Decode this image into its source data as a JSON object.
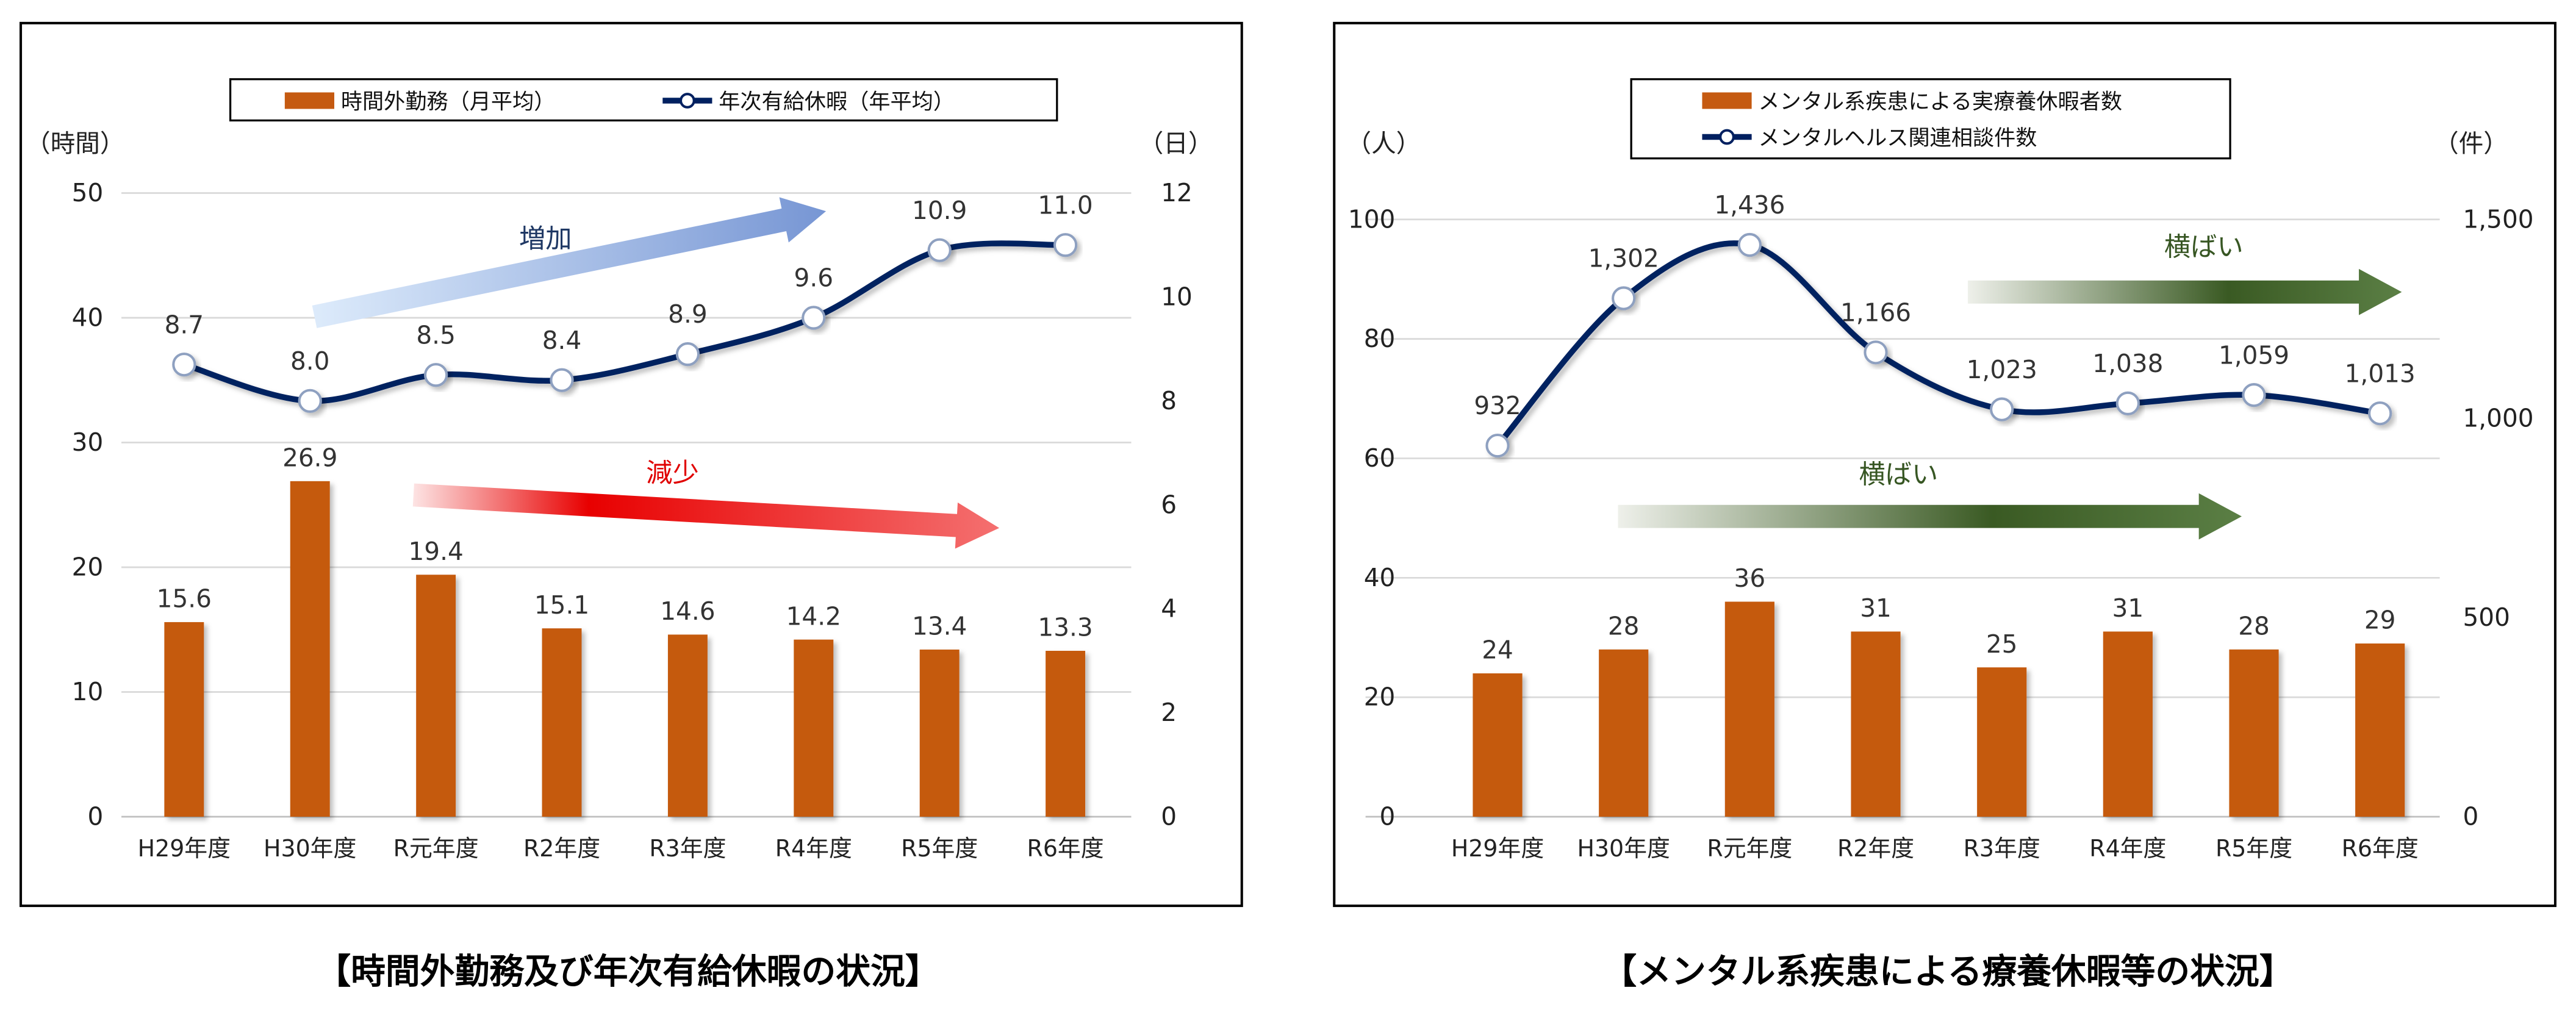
{
  "chart_data": [
    {
      "type": "bar+line",
      "caption": "【時間外勤務及び年次有給休暇の状況】",
      "categories": [
        "H29年度",
        "H30年度",
        "R元年度",
        "R2年度",
        "R3年度",
        "R4年度",
        "R5年度",
        "R6年度"
      ],
      "left_axis": {
        "unit_label": "（時間）",
        "ylim": [
          0,
          50
        ],
        "ticks": [
          "0",
          "10",
          "20",
          "30",
          "40",
          "50"
        ]
      },
      "right_axis": {
        "unit_label": "（日）",
        "ylim": [
          0,
          12
        ],
        "ticks": [
          "0",
          "2",
          "4",
          "6",
          "8",
          "10",
          "12"
        ]
      },
      "series": [
        {
          "name": "時間外勤務（月平均）",
          "type": "bar",
          "axis": "left",
          "color": "#C55A11",
          "values": [
            15.6,
            26.9,
            19.4,
            15.1,
            14.6,
            14.2,
            13.4,
            13.3
          ],
          "labels": [
            "15.6",
            "26.9",
            "19.4",
            "15.1",
            "14.6",
            "14.2",
            "13.4",
            "13.3"
          ]
        },
        {
          "name": "年次有給休暇（年平均）",
          "type": "line",
          "axis": "right",
          "color": "#002060",
          "values": [
            8.7,
            8.0,
            8.5,
            8.4,
            8.9,
            9.6,
            10.9,
            11.0
          ],
          "labels": [
            "8.7",
            "8.0",
            "8.5",
            "8.4",
            "8.9",
            "9.6",
            "10.9",
            "11.0"
          ]
        }
      ],
      "annotations": [
        {
          "text": "増加",
          "color": "#1F3864",
          "arrow": "up"
        },
        {
          "text": "減少",
          "color": "#E00000",
          "arrow": "down"
        }
      ],
      "grid": true,
      "legend": "top"
    },
    {
      "type": "bar+line",
      "caption": "【メンタル系疾患による療養休暇等の状況】",
      "categories": [
        "H29年度",
        "H30年度",
        "R元年度",
        "R2年度",
        "R3年度",
        "R4年度",
        "R5年度",
        "R6年度"
      ],
      "left_axis": {
        "unit_label": "（人）",
        "ylim": [
          0,
          100
        ],
        "ticks": [
          "0",
          "20",
          "40",
          "60",
          "80",
          "100"
        ]
      },
      "right_axis": {
        "unit_label": "（件）",
        "ylim": [
          0,
          1500
        ],
        "ticks": [
          "0",
          "500",
          "1,000",
          "1,500"
        ]
      },
      "series": [
        {
          "name": "メンタル系疾患による実療養休暇者数",
          "type": "bar",
          "axis": "left",
          "color": "#C55A11",
          "values": [
            24,
            28,
            36,
            31,
            25,
            31,
            28,
            29
          ],
          "labels": [
            "24",
            "28",
            "36",
            "31",
            "25",
            "31",
            "28",
            "29"
          ]
        },
        {
          "name": "メンタルヘルス関連相談件数",
          "type": "line",
          "axis": "right",
          "color": "#002060",
          "values": [
            932,
            1302,
            1436,
            1166,
            1023,
            1038,
            1059,
            1013
          ],
          "labels": [
            "932",
            "1,302",
            "1,436",
            "1,166",
            "1,023",
            "1,038",
            "1,059",
            "1,013"
          ]
        }
      ],
      "annotations": [
        {
          "text": "横ばい",
          "color": "#375623",
          "arrow": "flat"
        },
        {
          "text": "横ばい",
          "color": "#375623",
          "arrow": "flat"
        }
      ],
      "grid": true,
      "legend": "top"
    }
  ]
}
